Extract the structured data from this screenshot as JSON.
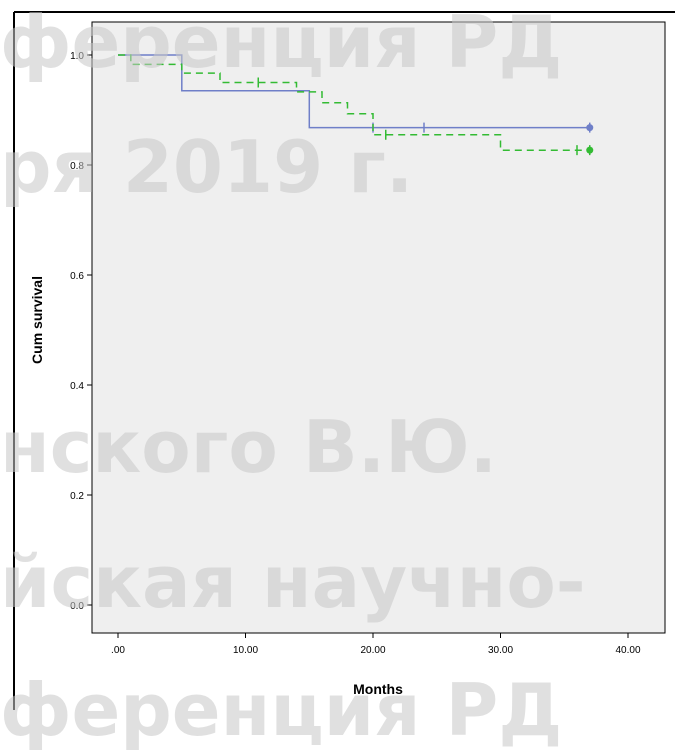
{
  "watermark": {
    "lines": [
      "ференция РД",
      "ря 2019 г.",
      "нского В.Ю.",
      "йская научно-",
      "ференция РД"
    ]
  },
  "chart_data": {
    "type": "line",
    "title": "",
    "xlabel": "Months",
    "ylabel": "Cum survival",
    "xlim": [
      0,
      40
    ],
    "ylim": [
      0,
      1.0
    ],
    "x_ticks": [
      0,
      10,
      20,
      30,
      40
    ],
    "x_tick_labels": [
      ".00",
      "10.00",
      "20.00",
      "30.00",
      "40.00"
    ],
    "y_ticks": [
      0,
      0.2,
      0.4,
      0.6,
      0.8,
      1.0
    ],
    "y_tick_labels": [
      "0.0",
      "0.2",
      "0.4",
      "0.6",
      "0.8",
      "1.0"
    ],
    "grid": false,
    "background_color": "#efefef",
    "series": [
      {
        "style": "solid",
        "color": "#6f7fc8",
        "x": [
          0,
          5,
          5,
          15,
          15,
          37
        ],
        "y": [
          1.0,
          1.0,
          0.935,
          0.935,
          0.868,
          0.868
        ],
        "censor_x": [
          20,
          24,
          37
        ],
        "censor_y": [
          0.868,
          0.868,
          0.868
        ]
      },
      {
        "style": "dashed",
        "color": "#33bb33",
        "x": [
          0,
          1,
          1,
          5,
          5,
          8,
          8,
          14,
          14,
          16,
          16,
          18,
          18,
          20,
          20,
          30,
          30,
          37
        ],
        "y": [
          1.0,
          1.0,
          0.983,
          0.983,
          0.967,
          0.967,
          0.95,
          0.95,
          0.933,
          0.933,
          0.913,
          0.913,
          0.893,
          0.893,
          0.855,
          0.855,
          0.827,
          0.827
        ],
        "censor_x": [
          11,
          21,
          36,
          37
        ],
        "censor_y": [
          0.95,
          0.855,
          0.827,
          0.827
        ]
      }
    ]
  }
}
